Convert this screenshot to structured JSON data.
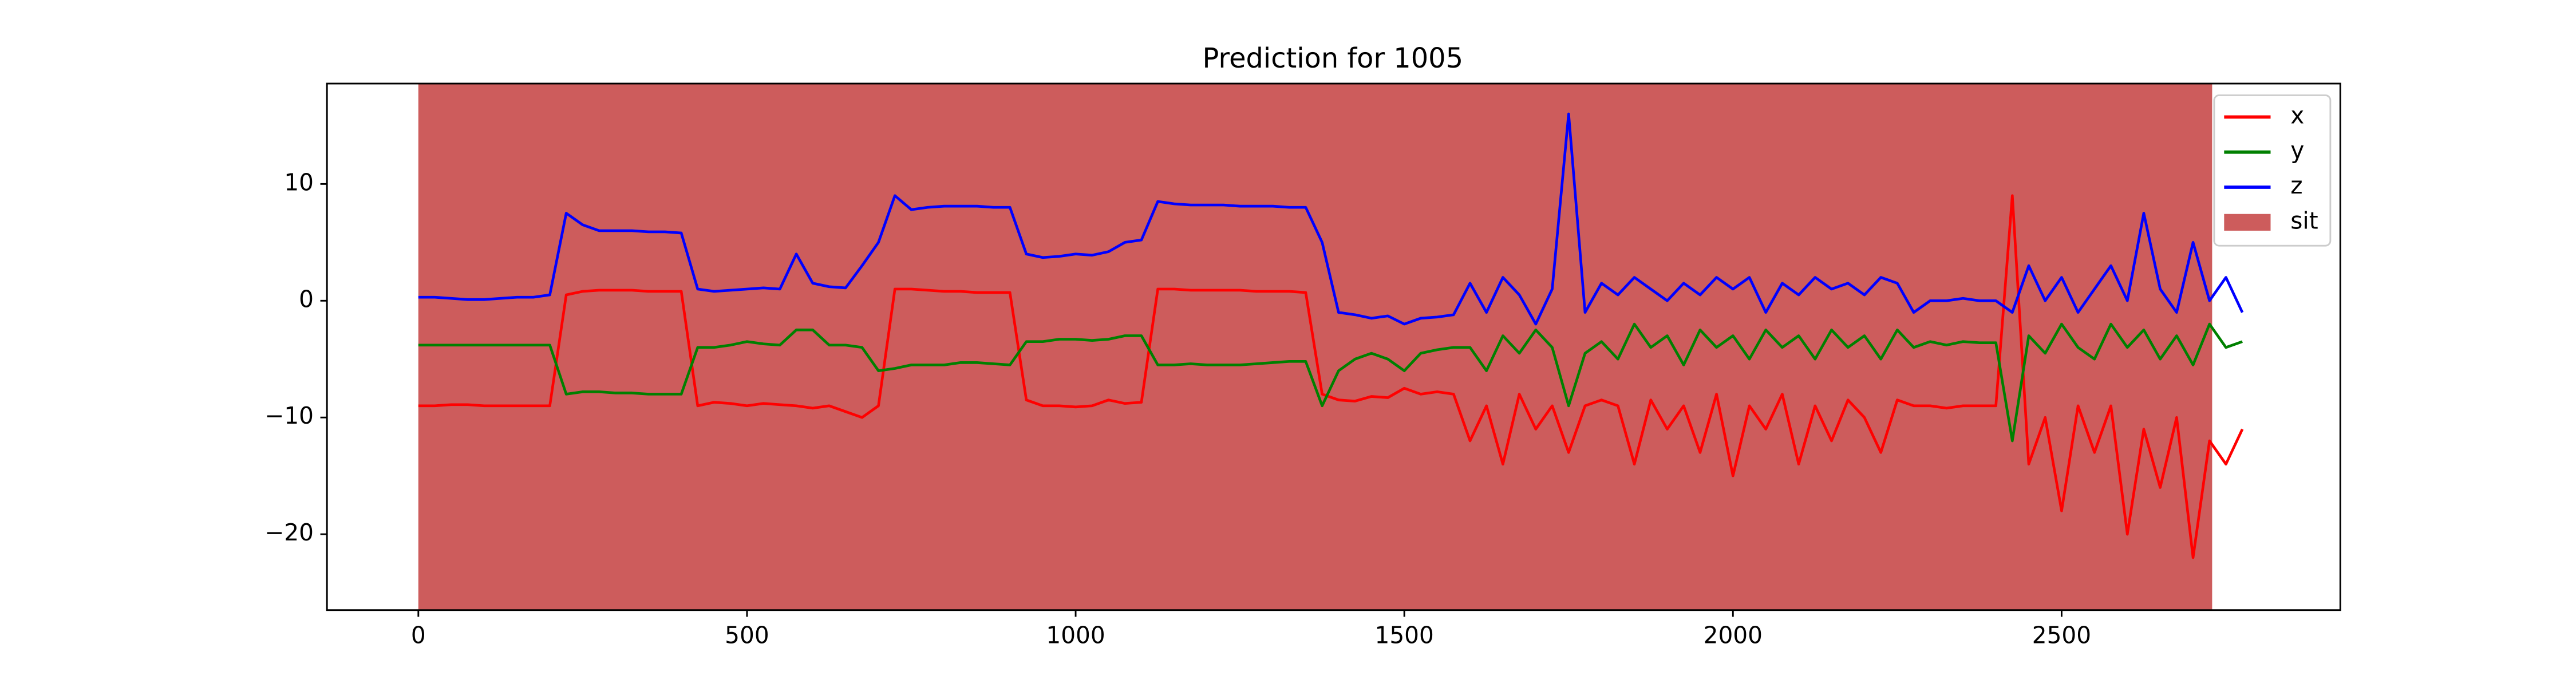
{
  "chart_data": {
    "type": "line",
    "title": "Prediction for 1005",
    "x": [
      0,
      25,
      50,
      75,
      100,
      125,
      150,
      175,
      200,
      225,
      250,
      275,
      300,
      325,
      350,
      375,
      400,
      425,
      450,
      475,
      500,
      525,
      550,
      575,
      600,
      625,
      650,
      675,
      700,
      725,
      750,
      775,
      800,
      825,
      850,
      875,
      900,
      925,
      950,
      975,
      1000,
      1025,
      1050,
      1075,
      1100,
      1125,
      1150,
      1175,
      1200,
      1225,
      1250,
      1275,
      1300,
      1325,
      1350,
      1375,
      1400,
      1425,
      1450,
      1475,
      1500,
      1525,
      1550,
      1575,
      1600,
      1625,
      1650,
      1675,
      1700,
      1725,
      1750,
      1775,
      1800,
      1825,
      1850,
      1875,
      1900,
      1925,
      1950,
      1975,
      2000,
      2025,
      2050,
      2075,
      2100,
      2125,
      2150,
      2175,
      2200,
      2225,
      2250,
      2275,
      2300,
      2325,
      2350,
      2375,
      2400,
      2425,
      2450,
      2475,
      2500,
      2525,
      2550,
      2575,
      2600,
      2625,
      2650,
      2675,
      2700,
      2725,
      2750,
      2775
    ],
    "series": [
      {
        "name": "x",
        "color": "#ff0000",
        "values": [
          -9,
          -9,
          -8.9,
          -8.9,
          -9,
          -9,
          -9,
          -9,
          -9,
          0.5,
          0.8,
          0.9,
          0.9,
          0.9,
          0.8,
          0.8,
          0.8,
          -9,
          -8.7,
          -8.8,
          -9,
          -8.8,
          -8.9,
          -9,
          -9.2,
          -9,
          -9.5,
          -10,
          -9,
          1,
          1,
          0.9,
          0.8,
          0.8,
          0.7,
          0.7,
          0.7,
          -8.5,
          -9,
          -9,
          -9.1,
          -9,
          -8.5,
          -8.8,
          -8.7,
          1,
          1,
          0.9,
          0.9,
          0.9,
          0.9,
          0.8,
          0.8,
          0.8,
          0.7,
          -8,
          -8.5,
          -8.6,
          -8.2,
          -8.3,
          -7.5,
          -8,
          -7.8,
          -8,
          -12,
          -9,
          -14,
          -8,
          -11,
          -9,
          -13,
          -9,
          -8.5,
          -9,
          -14,
          -8.5,
          -11,
          -9,
          -13,
          -8,
          -15,
          -9,
          -11,
          -8,
          -14,
          -9,
          -12,
          -8.5,
          -10,
          -13,
          -8.5,
          -9,
          -9,
          -9.2,
          -9,
          -9,
          -9,
          9,
          -14,
          -10,
          -18,
          -9,
          -13,
          -9,
          -20,
          -11,
          -16,
          -10,
          -22,
          -12,
          -14,
          -11
        ]
      },
      {
        "name": "y",
        "color": "#008000",
        "values": [
          -3.8,
          -3.8,
          -3.8,
          -3.8,
          -3.8,
          -3.8,
          -3.8,
          -3.8,
          -3.8,
          -8,
          -7.8,
          -7.8,
          -7.9,
          -7.9,
          -8,
          -8,
          -8,
          -4,
          -4,
          -3.8,
          -3.5,
          -3.7,
          -3.8,
          -2.5,
          -2.5,
          -3.8,
          -3.8,
          -4,
          -6,
          -5.8,
          -5.5,
          -5.5,
          -5.5,
          -5.3,
          -5.3,
          -5.4,
          -5.5,
          -3.5,
          -3.5,
          -3.3,
          -3.3,
          -3.4,
          -3.3,
          -3,
          -3,
          -5.5,
          -5.5,
          -5.4,
          -5.5,
          -5.5,
          -5.5,
          -5.4,
          -5.3,
          -5.2,
          -5.2,
          -9,
          -6,
          -5,
          -4.5,
          -5,
          -6,
          -4.5,
          -4.2,
          -4,
          -4,
          -6,
          -3,
          -4.5,
          -2.5,
          -4,
          -9,
          -4.5,
          -3.5,
          -5,
          -2,
          -4,
          -3,
          -5.5,
          -2.5,
          -4,
          -3,
          -5,
          -2.5,
          -4,
          -3,
          -5,
          -2.5,
          -4,
          -3,
          -5,
          -2.5,
          -4,
          -3.5,
          -3.8,
          -3.5,
          -3.6,
          -3.6,
          -12,
          -3,
          -4.5,
          -2,
          -4,
          -5,
          -2,
          -4,
          -2.5,
          -5,
          -3,
          -5.5,
          -2,
          -4,
          -3.5
        ]
      },
      {
        "name": "z",
        "color": "#0000ff",
        "values": [
          0.3,
          0.3,
          0.2,
          0.1,
          0.1,
          0.2,
          0.3,
          0.3,
          0.5,
          7.5,
          6.5,
          6,
          6,
          6,
          5.9,
          5.9,
          5.8,
          1,
          0.8,
          0.9,
          1,
          1.1,
          1,
          4,
          1.5,
          1.2,
          1.1,
          3,
          5,
          9,
          7.8,
          8,
          8.1,
          8.1,
          8.1,
          8,
          8,
          4,
          3.7,
          3.8,
          4,
          3.9,
          4.2,
          5,
          5.2,
          8.5,
          8.3,
          8.2,
          8.2,
          8.2,
          8.1,
          8.1,
          8.1,
          8,
          8,
          5,
          -1,
          -1.2,
          -1.5,
          -1.3,
          -2,
          -1.5,
          -1.4,
          -1.2,
          1.5,
          -1,
          2,
          0.5,
          -2,
          1,
          16,
          -1,
          1.5,
          0.5,
          2,
          1,
          0,
          1.5,
          0.5,
          2,
          1,
          2,
          -1,
          1.5,
          0.5,
          2,
          1,
          1.5,
          0.5,
          2,
          1.5,
          -1,
          0,
          0,
          0.2,
          0,
          0,
          -1,
          3,
          0,
          2,
          -1,
          1,
          3,
          0,
          7.5,
          1,
          -1,
          5,
          0,
          2,
          -1
        ]
      }
    ],
    "spans": [
      {
        "name": "sit",
        "color": "#cd5c5c",
        "start": 0,
        "end": 2729
      }
    ],
    "xlim": [
      -139,
      2924
    ],
    "ylim": [
      -26.5,
      18.6
    ],
    "xticks": [
      0,
      500,
      1000,
      1500,
      2000,
      2500
    ],
    "yticks": [
      {
        "value": -20,
        "label": "−20"
      },
      {
        "value": -10,
        "label": "−10"
      },
      0,
      10
    ],
    "legend": "upper right"
  }
}
